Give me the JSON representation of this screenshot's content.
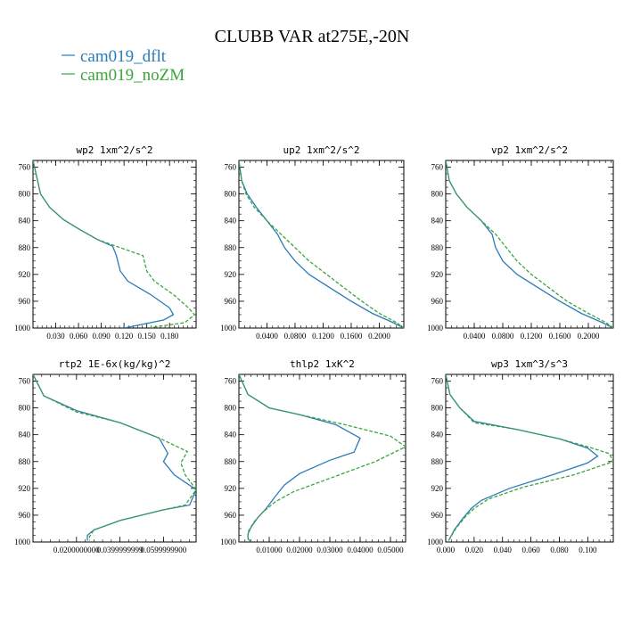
{
  "figure": {
    "title": "CLUBB VAR at275E,-20N",
    "legend": [
      {
        "label": "cam019_dflt",
        "color": "#2b7bb9"
      },
      {
        "label": "cam019_noZM",
        "color": "#3aa63a"
      }
    ]
  },
  "chart_data": [
    {
      "type": "line",
      "title": "wp2   1xm^2/s^2",
      "xlim": [
        0,
        0.215
      ],
      "ylim": [
        1000,
        750
      ],
      "yticks": [
        760,
        800,
        840,
        880,
        920,
        960,
        1000
      ],
      "xticks": [
        0.03,
        0.06,
        0.09,
        0.12,
        0.15,
        0.18
      ],
      "xtick_labels": [
        "0.030",
        "0.060",
        "0.090",
        "0.120",
        "0.150",
        "0.180"
      ],
      "grid": false,
      "series": [
        {
          "name": "cam019_dflt",
          "color": "#2b7bb9",
          "dashed": false,
          "x": [
            0.0,
            0.005,
            0.01,
            0.022,
            0.04,
            0.06,
            0.085,
            0.105,
            0.11,
            0.115,
            0.125,
            0.155,
            0.18,
            0.185,
            0.172,
            0.12
          ],
          "y": [
            750,
            775,
            800,
            820,
            838,
            852,
            868,
            878,
            892,
            915,
            930,
            950,
            970,
            980,
            988,
            1000
          ]
        },
        {
          "name": "cam019_noZM",
          "color": "#3aa63a",
          "dashed": true,
          "x": [
            0.0,
            0.005,
            0.01,
            0.022,
            0.04,
            0.06,
            0.085,
            0.12,
            0.145,
            0.15,
            0.16,
            0.185,
            0.205,
            0.213,
            0.2,
            0.15
          ],
          "y": [
            750,
            775,
            800,
            820,
            838,
            852,
            868,
            882,
            892,
            915,
            930,
            950,
            970,
            980,
            992,
            1000
          ]
        }
      ]
    },
    {
      "type": "line",
      "title": "up2   1xm^2/s^2",
      "xlim": [
        0,
        0.235
      ],
      "ylim": [
        1000,
        750
      ],
      "yticks": [
        760,
        800,
        840,
        880,
        920,
        960,
        1000
      ],
      "xticks": [
        0.04,
        0.08,
        0.12,
        0.16,
        0.2
      ],
      "xtick_labels": [
        "0.0400",
        "0.0800",
        "0.1200",
        "0.1600",
        "0.2000"
      ],
      "grid": false,
      "series": [
        {
          "name": "cam019_dflt",
          "color": "#2b7bb9",
          "dashed": false,
          "x": [
            0.0,
            0.004,
            0.012,
            0.025,
            0.04,
            0.055,
            0.065,
            0.08,
            0.1,
            0.13,
            0.16,
            0.19,
            0.22,
            0.235
          ],
          "y": [
            750,
            780,
            800,
            820,
            840,
            860,
            880,
            900,
            920,
            940,
            960,
            978,
            992,
            1000
          ]
        },
        {
          "name": "cam019_noZM",
          "color": "#3aa63a",
          "dashed": true,
          "x": [
            0.0,
            0.004,
            0.01,
            0.022,
            0.04,
            0.06,
            0.08,
            0.1,
            0.125,
            0.15,
            0.175,
            0.2,
            0.225,
            0.235
          ],
          "y": [
            750,
            780,
            800,
            820,
            840,
            860,
            880,
            900,
            920,
            940,
            960,
            978,
            992,
            1000
          ]
        }
      ]
    },
    {
      "type": "line",
      "title": "vp2   1xm^2/s^2",
      "xlim": [
        0,
        0.235
      ],
      "ylim": [
        1000,
        750
      ],
      "yticks": [
        760,
        800,
        840,
        880,
        920,
        960,
        1000
      ],
      "xticks": [
        0.04,
        0.08,
        0.12,
        0.16,
        0.2
      ],
      "xtick_labels": [
        "0.0400",
        "0.0800",
        "0.1200",
        "0.1600",
        "0.2000"
      ],
      "grid": false,
      "series": [
        {
          "name": "cam019_dflt",
          "color": "#2b7bb9",
          "dashed": false,
          "x": [
            0.0,
            0.005,
            0.015,
            0.03,
            0.05,
            0.065,
            0.07,
            0.08,
            0.1,
            0.13,
            0.16,
            0.19,
            0.22,
            0.235
          ],
          "y": [
            750,
            780,
            800,
            820,
            840,
            860,
            880,
            900,
            920,
            940,
            960,
            978,
            992,
            1000
          ]
        },
        {
          "name": "cam019_noZM",
          "color": "#3aa63a",
          "dashed": true,
          "x": [
            0.0,
            0.005,
            0.015,
            0.03,
            0.05,
            0.07,
            0.085,
            0.1,
            0.12,
            0.145,
            0.17,
            0.2,
            0.225,
            0.235
          ],
          "y": [
            750,
            780,
            800,
            820,
            840,
            860,
            880,
            900,
            920,
            940,
            960,
            978,
            992,
            1000
          ]
        }
      ]
    },
    {
      "type": "line",
      "title": "rtp2   1E-6x(kg/kg)^2",
      "xlim": [
        0,
        0.075
      ],
      "ylim": [
        1000,
        750
      ],
      "yticks": [
        760,
        800,
        840,
        880,
        920,
        960,
        1000
      ],
      "xticks": [
        0.02,
        0.04,
        0.06
      ],
      "xtick_labels": [
        "0.0200000000",
        "0.0399999999",
        "0.0599999900"
      ],
      "grid": false,
      "series": [
        {
          "name": "cam019_dflt",
          "color": "#2b7bb9",
          "dashed": false,
          "x": [
            0.0,
            0.005,
            0.02,
            0.04,
            0.058,
            0.062,
            0.06,
            0.065,
            0.075,
            0.072,
            0.06,
            0.04,
            0.028,
            0.025,
            0.025
          ],
          "y": [
            750,
            782,
            804,
            822,
            845,
            868,
            880,
            900,
            922,
            945,
            952,
            968,
            982,
            990,
            998
          ]
        },
        {
          "name": "cam019_noZM",
          "color": "#3aa63a",
          "dashed": true,
          "x": [
            0.0,
            0.005,
            0.02,
            0.04,
            0.058,
            0.071,
            0.068,
            0.07,
            0.075,
            0.07,
            0.06,
            0.04,
            0.028,
            0.026,
            0.026
          ],
          "y": [
            750,
            782,
            806,
            822,
            845,
            865,
            882,
            900,
            922,
            945,
            952,
            968,
            982,
            992,
            998
          ]
        }
      ]
    },
    {
      "type": "line",
      "title": "thlp2   1xK^2",
      "xlim": [
        0,
        0.055
      ],
      "ylim": [
        1000,
        750
      ],
      "yticks": [
        760,
        800,
        840,
        880,
        920,
        960,
        1000
      ],
      "xticks": [
        0.01,
        0.02,
        0.03,
        0.04,
        0.05
      ],
      "xtick_labels": [
        "0.01000",
        "0.02000",
        "0.03000",
        "0.04000",
        "0.05000"
      ],
      "grid": false,
      "series": [
        {
          "name": "cam019_dflt",
          "color": "#2b7bb9",
          "dashed": false,
          "x": [
            0.0,
            0.003,
            0.01,
            0.02,
            0.032,
            0.04,
            0.038,
            0.03,
            0.02,
            0.015,
            0.012,
            0.009,
            0.006,
            0.004,
            0.003,
            0.003,
            0.004
          ],
          "y": [
            750,
            780,
            800,
            810,
            825,
            845,
            866,
            878,
            898,
            915,
            932,
            950,
            965,
            978,
            988,
            995,
            1000
          ]
        },
        {
          "name": "cam019_noZM",
          "color": "#3aa63a",
          "dashed": true,
          "x": [
            0.0,
            0.003,
            0.01,
            0.02,
            0.035,
            0.05,
            0.055,
            0.045,
            0.03,
            0.018,
            0.012,
            0.008,
            0.005,
            0.003,
            0.003,
            0.004
          ],
          "y": [
            750,
            780,
            800,
            810,
            825,
            842,
            858,
            880,
            905,
            925,
            940,
            955,
            970,
            985,
            995,
            1000
          ]
        }
      ]
    },
    {
      "type": "line",
      "title": "wp3   1xm^3/s^3",
      "xlim": [
        0,
        0.118
      ],
      "ylim": [
        1000,
        750
      ],
      "yticks": [
        760,
        800,
        840,
        880,
        920,
        960,
        1000
      ],
      "xticks": [
        0.0,
        0.02,
        0.04,
        0.06,
        0.08,
        0.1
      ],
      "xtick_labels": [
        "0.000",
        "0.020",
        "0.040",
        "0.060",
        "0.080",
        "0.100"
      ],
      "grid": false,
      "series": [
        {
          "name": "cam019_dflt",
          "color": "#2b7bb9",
          "dashed": false,
          "x": [
            0.0,
            0.003,
            0.01,
            0.02,
            0.05,
            0.08,
            0.1,
            0.107,
            0.1,
            0.075,
            0.045,
            0.025,
            0.018,
            0.012,
            0.006,
            0.002
          ],
          "y": [
            750,
            780,
            800,
            820,
            832,
            846,
            860,
            872,
            882,
            900,
            920,
            938,
            950,
            965,
            982,
            998
          ]
        },
        {
          "name": "cam019_noZM",
          "color": "#3aa63a",
          "dashed": true,
          "x": [
            0.0,
            0.003,
            0.01,
            0.02,
            0.05,
            0.08,
            0.1,
            0.115,
            0.118,
            0.09,
            0.055,
            0.03,
            0.02,
            0.014,
            0.007,
            0.002
          ],
          "y": [
            750,
            780,
            800,
            822,
            832,
            846,
            858,
            868,
            880,
            900,
            918,
            936,
            950,
            962,
            980,
            998
          ]
        }
      ]
    }
  ]
}
